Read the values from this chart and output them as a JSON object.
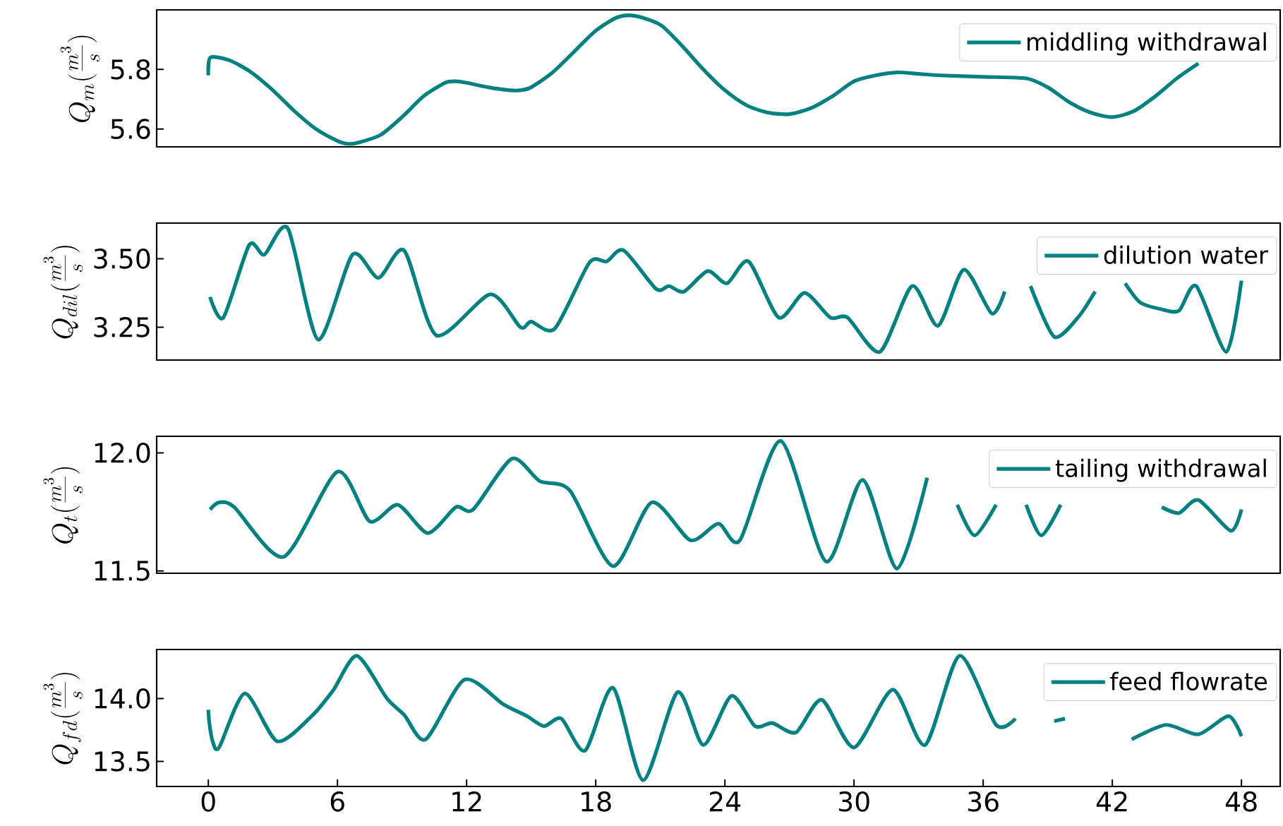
{
  "chart_data": [
    {
      "type": "line",
      "ylabel": "Q_m(\\frac{m^3}{s})",
      "xlim": [
        -2.4,
        49.8
      ],
      "ylim": [
        5.54,
        6.0
      ],
      "yticks": [
        5.6,
        5.8
      ],
      "tick_labels": "y",
      "legend": "top right",
      "marker": "none",
      "x": [
        0,
        0.1,
        1,
        2,
        3,
        4,
        5,
        6,
        6.5,
        7,
        8,
        9,
        10,
        11,
        11.5,
        12,
        13,
        14,
        14.5,
        15,
        16,
        17,
        18,
        19,
        19.8,
        21,
        22,
        23,
        24,
        25,
        26,
        27,
        28,
        29,
        30,
        31,
        32,
        33,
        34,
        36,
        38,
        39,
        40,
        41,
        42,
        43,
        44,
        45,
        46
      ],
      "series": [
        {
          "name": "middling withdrawal",
          "color": "#008080",
          "values": [
            5.78,
            5.84,
            5.83,
            5.79,
            5.73,
            5.66,
            5.6,
            5.56,
            5.55,
            5.555,
            5.58,
            5.64,
            5.71,
            5.755,
            5.76,
            5.755,
            5.74,
            5.73,
            5.73,
            5.74,
            5.79,
            5.86,
            5.93,
            5.975,
            5.98,
            5.95,
            5.88,
            5.8,
            5.73,
            5.68,
            5.655,
            5.65,
            5.67,
            5.71,
            5.76,
            5.78,
            5.79,
            5.785,
            5.78,
            5.775,
            5.77,
            5.74,
            5.69,
            5.655,
            5.64,
            5.66,
            5.71,
            5.77,
            5.82
          ]
        }
      ]
    },
    {
      "type": "line",
      "ylabel": "Q_{dil}(\\frac{m^3}{s})",
      "xlim": [
        -2.4,
        49.8
      ],
      "ylim": [
        3.13,
        3.63
      ],
      "yticks": [
        {
          "value": 3.25,
          "label": "3.25"
        },
        {
          "value": 3.5,
          "label": "3.50"
        }
      ],
      "tick_labels": "y",
      "legend": "top right",
      "marker": "none",
      "x": [
        0.08,
        0.7,
        1.9,
        2.6,
        3.7,
        5.1,
        6.7,
        7.9,
        9.1,
        10.6,
        13.1,
        14.5,
        15.0,
        16.1,
        17.7,
        18.5,
        19.3,
        20.8,
        21.4,
        22.1,
        23.2,
        24.1,
        25.1,
        26.5,
        27.7,
        28.9,
        29.7,
        31.2,
        32.7,
        33.9,
        35.1,
        36.4,
        37.0,
        37.6,
        38.2,
        39.3,
        40.4,
        41.2,
        41.9,
        42.6,
        43.3,
        44.3,
        45.1,
        45.9,
        47.3,
        48
      ],
      "series": [
        {
          "name": "dilution water",
          "color": "#008080",
          "values": [
            3.36,
            3.285,
            3.55,
            3.515,
            3.61,
            3.205,
            3.515,
            3.43,
            3.53,
            3.22,
            3.37,
            3.25,
            3.27,
            3.245,
            3.485,
            3.49,
            3.53,
            3.39,
            3.4,
            3.38,
            3.455,
            3.41,
            3.49,
            3.285,
            3.375,
            3.285,
            3.285,
            3.16,
            3.4,
            3.255,
            3.46,
            3.3,
            3.38,
            null,
            3.4,
            3.215,
            3.285,
            3.38,
            null,
            3.41,
            3.34,
            3.315,
            3.31,
            3.4,
            3.16,
            3.42
          ]
        }
      ]
    },
    {
      "type": "line",
      "ylabel": "Q_t(\\frac{m^3}{s})",
      "xlim": [
        -2.4,
        49.8
      ],
      "ylim": [
        11.49,
        12.07
      ],
      "yticks": [
        {
          "value": 11.5,
          "label": "11.5"
        },
        {
          "value": 12.0,
          "label": "12.0"
        }
      ],
      "tick_labels": "y",
      "legend": "top right",
      "marker": "none",
      "x": [
        0.08,
        0.5,
        1.2,
        3.5,
        6.0,
        7.5,
        8.8,
        10.2,
        11.5,
        12.3,
        14.1,
        15.4,
        16.8,
        18.8,
        20.6,
        22.4,
        23.7,
        24.7,
        26.6,
        28.7,
        30.4,
        32.0,
        33.4,
        34.2,
        34.8,
        35.6,
        36.6,
        37.4,
        38.0,
        38.7,
        39.6,
        40.5,
        44.3,
        45.1,
        46.0,
        47.5,
        48
      ],
      "series": [
        {
          "name": "tailing withdrawal",
          "color": "#008080",
          "values": [
            11.76,
            11.79,
            11.77,
            11.56,
            11.92,
            11.71,
            11.78,
            11.66,
            11.77,
            11.76,
            11.975,
            11.88,
            11.84,
            11.52,
            11.79,
            11.63,
            11.7,
            11.63,
            12.05,
            11.54,
            11.885,
            11.51,
            11.895,
            null,
            11.78,
            11.65,
            11.78,
            null,
            11.78,
            11.65,
            11.78,
            null,
            11.77,
            11.745,
            11.8,
            11.67,
            11.76
          ]
        }
      ]
    },
    {
      "type": "line",
      "ylabel": "Q_{fd}(\\frac{m^3}{s})",
      "xlim": [
        -2.4,
        49.8
      ],
      "ylim": [
        13.3,
        14.39
      ],
      "xticks": [
        0,
        6,
        12,
        18,
        24,
        30,
        36,
        42,
        48
      ],
      "yticks": [
        {
          "value": 13.5,
          "label": "13.5"
        },
        {
          "value": 14.0,
          "label": "14.0"
        }
      ],
      "legend": "top right",
      "marker": "none",
      "x": [
        0,
        0.05,
        0.2,
        0.5,
        1.7,
        3.2,
        4.8,
        5.8,
        6.9,
        8.3,
        9.1,
        10.1,
        11.9,
        13.7,
        14.8,
        15.6,
        16.4,
        17.5,
        18.8,
        20.2,
        21.8,
        23.0,
        24.3,
        25.4,
        26.2,
        27.3,
        28.5,
        30.0,
        31.8,
        33.3,
        34.9,
        36.6,
        37.5,
        38.3,
        39.3,
        39.8,
        40.6,
        42.9,
        44.5,
        46.0,
        47.4,
        48
      ],
      "series": [
        {
          "name": "feed flowrate",
          "color": "#008080",
          "values": [
            13.91,
            13.8,
            13.66,
            13.61,
            14.04,
            13.66,
            13.86,
            14.065,
            14.34,
            14.0,
            13.87,
            13.675,
            14.15,
            13.955,
            13.86,
            13.78,
            13.84,
            13.585,
            14.085,
            13.35,
            14.05,
            13.63,
            14.02,
            13.78,
            13.805,
            13.73,
            13.99,
            13.61,
            14.07,
            13.63,
            14.34,
            13.79,
            13.84,
            null,
            13.82,
            13.84,
            null,
            13.675,
            13.79,
            13.715,
            13.86,
            13.7
          ]
        }
      ]
    }
  ]
}
